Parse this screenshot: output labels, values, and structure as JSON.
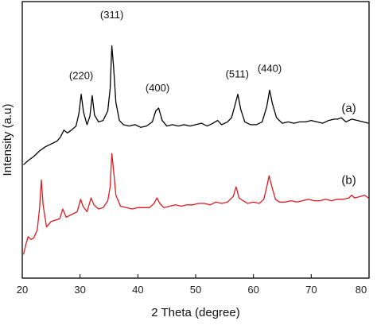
{
  "chart_data": {
    "type": "line",
    "title": "",
    "xlabel": "2 Theta (degree)",
    "ylabel": "Intensity (a.u)",
    "xlim": [
      20,
      80
    ],
    "ylim": [
      0,
      100
    ],
    "x_ticks": [
      20,
      30,
      40,
      50,
      60,
      70,
      80
    ],
    "y_ticks_shown": false,
    "grid": false,
    "legend": "none",
    "series": [
      {
        "name": "(a)",
        "color": "#000000",
        "points": [
          [
            20.2,
            41.0
          ],
          [
            21.0,
            42.5
          ],
          [
            22.0,
            44.0
          ],
          [
            23.0,
            46.0
          ],
          [
            24.0,
            47.5
          ],
          [
            25.0,
            48.5
          ],
          [
            26.0,
            49.5
          ],
          [
            26.6,
            51.0
          ],
          [
            27.2,
            53.5
          ],
          [
            27.8,
            52.5
          ],
          [
            28.5,
            53.5
          ],
          [
            29.3,
            55.0
          ],
          [
            29.8,
            59.5
          ],
          [
            30.2,
            66.5
          ],
          [
            30.6,
            60.0
          ],
          [
            31.2,
            55.5
          ],
          [
            31.7,
            58.5
          ],
          [
            32.1,
            66.0
          ],
          [
            32.5,
            59.0
          ],
          [
            33.2,
            56.5
          ],
          [
            34.0,
            57.0
          ],
          [
            34.8,
            60.5
          ],
          [
            35.2,
            68.5
          ],
          [
            35.5,
            84.0
          ],
          [
            35.8,
            76.5
          ],
          [
            36.2,
            63.5
          ],
          [
            36.8,
            57.0
          ],
          [
            37.5,
            55.5
          ],
          [
            38.5,
            55.0
          ],
          [
            39.5,
            55.5
          ],
          [
            40.5,
            54.5
          ],
          [
            41.5,
            55.0
          ],
          [
            42.5,
            56.5
          ],
          [
            43.1,
            60.5
          ],
          [
            43.6,
            61.5
          ],
          [
            44.2,
            57.0
          ],
          [
            45.0,
            55.0
          ],
          [
            46.0,
            55.5
          ],
          [
            47.0,
            55.0
          ],
          [
            48.0,
            55.5
          ],
          [
            49.0,
            55.0
          ],
          [
            50.0,
            55.5
          ],
          [
            51.0,
            56.0
          ],
          [
            52.0,
            55.0
          ],
          [
            53.0,
            56.0
          ],
          [
            53.8,
            57.0
          ],
          [
            54.5,
            55.5
          ],
          [
            55.5,
            56.5
          ],
          [
            56.2,
            58.0
          ],
          [
            56.8,
            62.5
          ],
          [
            57.3,
            66.5
          ],
          [
            57.8,
            61.0
          ],
          [
            58.5,
            56.5
          ],
          [
            59.5,
            55.5
          ],
          [
            60.5,
            55.5
          ],
          [
            61.5,
            56.5
          ],
          [
            62.3,
            62.0
          ],
          [
            62.8,
            68.0
          ],
          [
            63.3,
            63.0
          ],
          [
            64.0,
            58.0
          ],
          [
            65.0,
            56.0
          ],
          [
            66.0,
            56.5
          ],
          [
            67.0,
            56.0
          ],
          [
            68.0,
            56.5
          ],
          [
            69.0,
            56.5
          ],
          [
            70.0,
            57.0
          ],
          [
            71.0,
            56.5
          ],
          [
            72.0,
            56.0
          ],
          [
            73.0,
            57.0
          ],
          [
            74.0,
            57.5
          ],
          [
            74.6,
            57.5
          ],
          [
            75.2,
            58.0
          ],
          [
            76.0,
            56.5
          ],
          [
            77.0,
            57.5
          ],
          [
            78.0,
            57.0
          ],
          [
            79.0,
            56.5
          ],
          [
            79.9,
            56.0
          ]
        ]
      },
      {
        "name": "(b)",
        "color": "#e0191f",
        "points": [
          [
            20.2,
            8.5
          ],
          [
            20.6,
            12.0
          ],
          [
            21.0,
            15.0
          ],
          [
            21.5,
            14.0
          ],
          [
            22.0,
            14.5
          ],
          [
            22.6,
            17.5
          ],
          [
            23.0,
            25.5
          ],
          [
            23.3,
            35.5
          ],
          [
            23.6,
            26.5
          ],
          [
            24.2,
            18.5
          ],
          [
            25.0,
            20.5
          ],
          [
            25.8,
            21.0
          ],
          [
            26.5,
            21.5
          ],
          [
            27.0,
            25.0
          ],
          [
            27.6,
            22.0
          ],
          [
            28.5,
            23.0
          ],
          [
            29.5,
            24.0
          ],
          [
            30.1,
            28.5
          ],
          [
            30.5,
            26.0
          ],
          [
            31.2,
            24.0
          ],
          [
            31.9,
            29.0
          ],
          [
            32.4,
            26.5
          ],
          [
            33.2,
            25.0
          ],
          [
            34.0,
            25.5
          ],
          [
            34.8,
            28.0
          ],
          [
            35.2,
            33.0
          ],
          [
            35.5,
            45.0
          ],
          [
            35.8,
            39.0
          ],
          [
            36.2,
            30.0
          ],
          [
            37.0,
            26.0
          ],
          [
            38.0,
            25.5
          ],
          [
            39.0,
            25.0
          ],
          [
            40.0,
            25.5
          ],
          [
            41.0,
            25.5
          ],
          [
            42.0,
            25.5
          ],
          [
            42.8,
            27.0
          ],
          [
            43.3,
            29.0
          ],
          [
            43.8,
            27.0
          ],
          [
            44.5,
            25.5
          ],
          [
            45.5,
            26.0
          ],
          [
            46.5,
            26.5
          ],
          [
            47.5,
            26.0
          ],
          [
            48.5,
            26.5
          ],
          [
            49.5,
            26.5
          ],
          [
            50.5,
            27.0
          ],
          [
            51.5,
            27.0
          ],
          [
            52.5,
            26.5
          ],
          [
            53.5,
            27.5
          ],
          [
            54.5,
            27.0
          ],
          [
            55.5,
            27.5
          ],
          [
            56.5,
            29.5
          ],
          [
            57.0,
            33.0
          ],
          [
            57.5,
            29.0
          ],
          [
            58.2,
            28.0
          ],
          [
            59.0,
            27.0
          ],
          [
            60.0,
            27.5
          ],
          [
            61.0,
            27.0
          ],
          [
            61.8,
            28.5
          ],
          [
            62.3,
            33.0
          ],
          [
            62.7,
            37.0
          ],
          [
            63.2,
            33.0
          ],
          [
            63.8,
            28.5
          ],
          [
            64.5,
            27.5
          ],
          [
            65.5,
            27.5
          ],
          [
            66.5,
            28.0
          ],
          [
            67.5,
            27.5
          ],
          [
            68.5,
            28.0
          ],
          [
            69.5,
            28.5
          ],
          [
            70.5,
            28.0
          ],
          [
            71.5,
            28.0
          ],
          [
            72.5,
            28.5
          ],
          [
            73.5,
            28.0
          ],
          [
            74.5,
            28.5
          ],
          [
            75.5,
            28.5
          ],
          [
            76.5,
            29.0
          ],
          [
            77.0,
            30.0
          ],
          [
            77.5,
            29.0
          ],
          [
            78.5,
            29.5
          ],
          [
            79.2,
            30.0
          ],
          [
            79.9,
            29.0
          ]
        ]
      }
    ],
    "annotations": [
      {
        "text": "(220)",
        "x": 30.2,
        "y": 72.0
      },
      {
        "text": "(311)",
        "x": 35.5,
        "y": 94.0
      },
      {
        "text": "(400)",
        "x": 43.4,
        "y": 67.5
      },
      {
        "text": "(511)",
        "x": 57.2,
        "y": 72.5
      },
      {
        "text": "(440)",
        "x": 62.8,
        "y": 74.5
      },
      {
        "text": "(a)",
        "x": 76.5,
        "y": 60.0
      },
      {
        "text": "(b)",
        "x": 76.5,
        "y": 34.0
      }
    ]
  }
}
